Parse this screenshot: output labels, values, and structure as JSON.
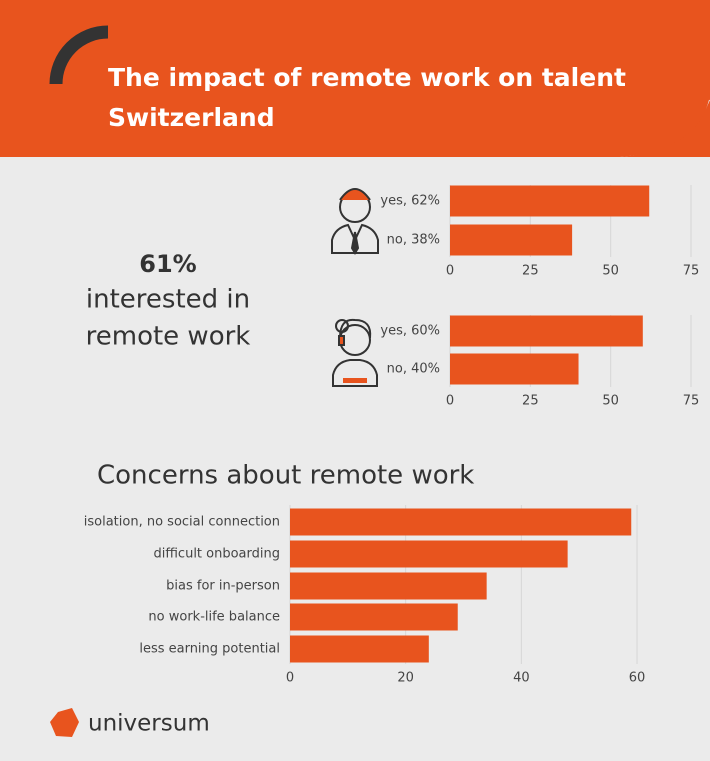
{
  "header": {
    "title": [
      "The impact of remote work on talent",
      "Switzerland"
    ]
  },
  "headline": {
    "figure": "61%",
    "text": [
      "interested in",
      "remote work"
    ]
  },
  "section_title": "Concerns about remote work",
  "footer": {
    "logo": "universum"
  },
  "chart_data": [
    {
      "type": "bar",
      "orientation": "horizontal",
      "categories": [
        "yes, 62%",
        "no, 38%"
      ],
      "values": [
        62,
        38
      ],
      "color": "#e8541e",
      "xlim": [
        0,
        75
      ],
      "xticks": [
        0,
        25,
        50,
        75
      ],
      "grid": true
    },
    {
      "type": "bar",
      "orientation": "horizontal",
      "categories": [
        "yes, 60%",
        "no, 40%"
      ],
      "values": [
        60,
        40
      ],
      "color": "#e8541e",
      "xlim": [
        0,
        75
      ],
      "xticks": [
        0,
        25,
        50,
        75
      ],
      "grid": true
    },
    {
      "type": "bar",
      "orientation": "horizontal",
      "categories": [
        "isolation, no social connection",
        "difficult onboarding",
        "bias for in-person",
        "no work-life balance",
        "less earning potential"
      ],
      "values": [
        59,
        48,
        34,
        29,
        24
      ],
      "color": "#e8541e",
      "xlim": [
        0,
        62
      ],
      "xticks": [
        0,
        20,
        40,
        60
      ],
      "grid": true
    }
  ]
}
